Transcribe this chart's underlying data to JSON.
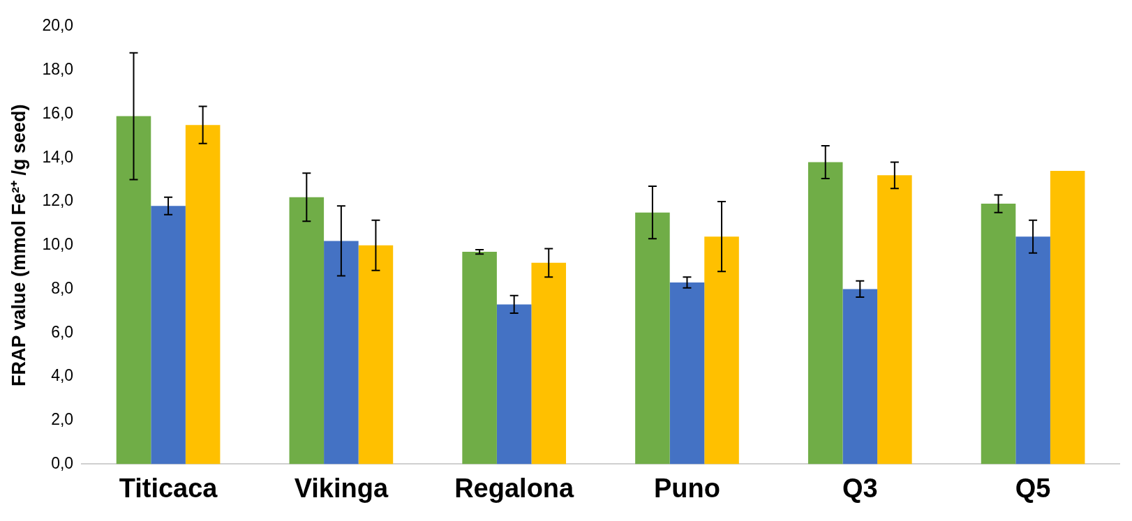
{
  "chart_data": {
    "type": "bar",
    "ylabel": "FRAP value (mmol Fe²⁺ /g seed)",
    "categories": [
      "Titicaca",
      "Vikinga",
      "Regalona",
      "Puno",
      "Q3",
      "Q5"
    ],
    "series": [
      {
        "color": "#70ad47",
        "values": [
          15.9,
          12.2,
          9.7,
          11.5,
          13.8,
          11.9
        ],
        "errors": [
          2.9,
          1.1,
          0.1,
          1.2,
          0.75,
          0.4
        ]
      },
      {
        "color": "#4472c4",
        "values": [
          11.8,
          10.2,
          7.3,
          8.3,
          8.0,
          10.4
        ],
        "errors": [
          0.4,
          1.6,
          0.4,
          0.25,
          0.37,
          0.75
        ]
      },
      {
        "color": "#ffc000",
        "values": [
          15.5,
          10.0,
          9.2,
          10.4,
          13.2,
          13.4
        ],
        "errors": [
          0.85,
          1.15,
          0.65,
          1.6,
          0.6,
          null
        ]
      }
    ],
    "ylim": [
      0,
      20
    ],
    "yticks": [
      {
        "value": 0,
        "label": "0,0"
      },
      {
        "value": 2,
        "label": "2,0"
      },
      {
        "value": 4,
        "label": "4,0"
      },
      {
        "value": 6,
        "label": "6,0"
      },
      {
        "value": 8,
        "label": "8,0"
      },
      {
        "value": 10,
        "label": "10,0"
      },
      {
        "value": 12,
        "label": "12,0"
      },
      {
        "value": 14,
        "label": "14,0"
      },
      {
        "value": 16,
        "label": "16,0"
      },
      {
        "value": 18,
        "label": "18,0"
      },
      {
        "value": 20,
        "label": "20,0"
      }
    ],
    "grid": false,
    "legend": false
  }
}
